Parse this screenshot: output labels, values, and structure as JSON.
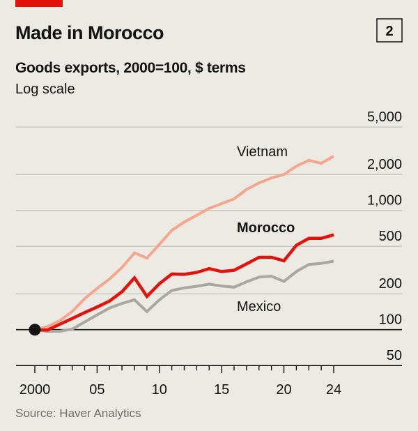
{
  "header": {
    "title": "Made in Morocco",
    "chart_number": "2",
    "subtitle": "Goods exports, 2000=100, $ terms",
    "scale_note": "Log scale"
  },
  "footer": {
    "source": "Source: Haver Analytics"
  },
  "colors": {
    "accent": "#e3120b",
    "vietnam": "#f4a78e",
    "morocco": "#e3120b",
    "mexico": "#a8a8a0",
    "grid": "#c9c7bf",
    "text": "#121212",
    "background": "#eceae3"
  },
  "chart_data": {
    "type": "line",
    "title": "Made in Morocco",
    "subtitle": "Goods exports, 2000=100, $ terms",
    "yscale": "log",
    "ylim": [
      50,
      5000
    ],
    "yticks": [
      50,
      100,
      200,
      500,
      1000,
      2000,
      5000
    ],
    "ytick_labels": [
      "50",
      "100",
      "200",
      "500",
      "1,000",
      "2,000",
      "5,000"
    ],
    "xlim": [
      2000,
      2024
    ],
    "xticks": [
      2000,
      2005,
      2010,
      2015,
      2020,
      2024
    ],
    "xtick_labels": [
      "2000",
      "05",
      "10",
      "15",
      "20",
      "24"
    ],
    "grid": true,
    "x": [
      2000,
      2001,
      2002,
      2003,
      2004,
      2005,
      2006,
      2007,
      2008,
      2009,
      2010,
      2011,
      2012,
      2013,
      2014,
      2015,
      2016,
      2017,
      2018,
      2019,
      2020,
      2021,
      2022,
      2023,
      2024
    ],
    "series": [
      {
        "name": "Vietnam",
        "values": [
          100,
          106,
          119,
          142,
          182,
          222,
          266,
          333,
          440,
          398,
          520,
          680,
          800,
          910,
          1040,
          1140,
          1250,
          1500,
          1700,
          1870,
          2000,
          2350,
          2630,
          2480,
          2850
        ]
      },
      {
        "name": "Morocco",
        "values": [
          100,
          99,
          111,
          124,
          139,
          155,
          174,
          208,
          272,
          190,
          243,
          293,
          291,
          302,
          325,
          307,
          315,
          356,
          404,
          404,
          378,
          510,
          583,
          583,
          624
        ]
      },
      {
        "name": "Mexico",
        "values": [
          100,
          97,
          97,
          101,
          116,
          133,
          152,
          166,
          178,
          142,
          178,
          213,
          224,
          231,
          241,
          232,
          227,
          252,
          276,
          281,
          254,
          307,
          352,
          360,
          375
        ]
      }
    ],
    "source": "Source: Haver Analytics"
  }
}
